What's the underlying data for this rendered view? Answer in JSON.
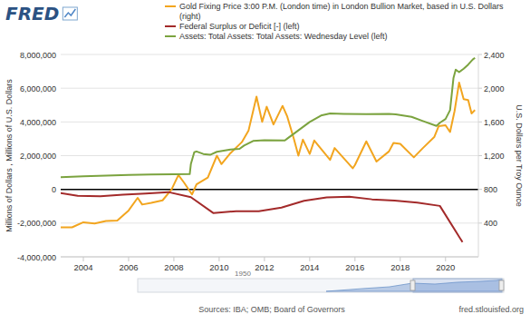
{
  "chart_data": {
    "type": "line",
    "logo": "FRED",
    "y_label": "Millions of Dollars , Millions of U.S. Dollars",
    "y2_label": "U.S. Dollars per Troy Ounce",
    "source": "Sources: IBA; OMB; Board of Governors",
    "url": "fred.stlouisfed.org",
    "range_slider_label": "1950",
    "legend": "top",
    "grid": true,
    "xlim": [
      2003,
      2021.45
    ],
    "xticks": [
      2004,
      2006,
      2008,
      2010,
      2012,
      2014,
      2016,
      2018,
      2020
    ],
    "ylim": [
      -4000000,
      8000000
    ],
    "yticks": [
      {
        "value": -4000000,
        "label": "-4,000,000"
      },
      {
        "value": -2000000,
        "label": "-2,000,000"
      },
      0,
      {
        "value": 2000000,
        "label": "2,000,000"
      },
      {
        "value": 4000000,
        "label": "4,000,000"
      },
      {
        "value": 6000000,
        "label": "6,000,000"
      },
      {
        "value": 8000000,
        "label": "8,000,000"
      }
    ],
    "y2lim": [
      0,
      2400
    ],
    "y2ticks": [
      400,
      800,
      {
        "value": 1200,
        "label": "1,200"
      },
      {
        "value": 1600,
        "label": "1,600"
      },
      {
        "value": 2000,
        "label": "2,000"
      },
      {
        "value": 2400,
        "label": "2,400"
      }
    ],
    "series": [
      {
        "name": "Gold Fixing Price 3:00 P.M. (London time) in London Bullion Market, based in U.S. Dollars (right)",
        "color": "#f2a51f",
        "axis": "y2",
        "x": [
          2003.0,
          2003.5,
          2004.0,
          2004.5,
          2005.0,
          2005.5,
          2006.0,
          2006.4,
          2006.6,
          2007.0,
          2007.5,
          2007.9,
          2008.2,
          2008.45,
          2008.8,
          2009.0,
          2009.5,
          2009.9,
          2010.1,
          2010.5,
          2011.0,
          2011.3,
          2011.65,
          2011.9,
          2012.1,
          2012.4,
          2012.8,
          2013.0,
          2013.3,
          2013.5,
          2013.7,
          2014.0,
          2014.2,
          2014.9,
          2015.1,
          2015.9,
          2016.0,
          2016.5,
          2016.95,
          2017.5,
          2017.7,
          2018.0,
          2018.6,
          2019.0,
          2019.5,
          2019.7,
          2020.0,
          2020.2,
          2020.4,
          2020.6,
          2020.8,
          2021.0,
          2021.15,
          2021.3
        ],
        "values": [
          350,
          350,
          410,
          395,
          425,
          430,
          550,
          700,
          620,
          640,
          670,
          800,
          970,
          880,
          740,
          860,
          940,
          1200,
          1100,
          1230,
          1360,
          1500,
          1900,
          1600,
          1780,
          1570,
          1790,
          1670,
          1400,
          1200,
          1390,
          1220,
          1380,
          1150,
          1290,
          1050,
          1090,
          1370,
          1130,
          1250,
          1350,
          1340,
          1180,
          1290,
          1420,
          1550,
          1560,
          1480,
          1730,
          2067,
          1870,
          1860,
          1700,
          1740
        ]
      },
      {
        "name": "Federal Surplus or Deficit [-] (left)",
        "color": "#a32a2a",
        "x": [
          2002.75,
          2003.75,
          2004.75,
          2005.75,
          2006.75,
          2007.75,
          2008.75,
          2009.75,
          2010.75,
          2011.75,
          2012.75,
          2013.75,
          2014.75,
          2015.75,
          2016.75,
          2017.75,
          2018.75,
          2019.75,
          2020.75
        ],
        "values": [
          -160000,
          -380000,
          -410000,
          -320000,
          -250000,
          -160000,
          -460000,
          -1410000,
          -1290000,
          -1300000,
          -1080000,
          -680000,
          -480000,
          -440000,
          -590000,
          -670000,
          -780000,
          -980000,
          -3130000
        ]
      },
      {
        "name": "Assets: Total Assets: Total Assets: Wednesday Level (left)",
        "color": "#7ba33f",
        "x": [
          2003.0,
          2004.0,
          2005.0,
          2006.0,
          2007.0,
          2008.0,
          2008.7,
          2008.75,
          2008.9,
          2009.0,
          2009.3,
          2009.6,
          2009.9,
          2010.5,
          2010.9,
          2011.1,
          2011.5,
          2012.0,
          2012.9,
          2013.0,
          2013.5,
          2014.0,
          2014.5,
          2014.9,
          2015.5,
          2016.5,
          2017.5,
          2017.8,
          2018.5,
          2019.0,
          2019.6,
          2019.75,
          2020.0,
          2020.2,
          2020.35,
          2020.45,
          2020.6,
          2020.8,
          2021.0,
          2021.2,
          2021.3
        ],
        "values": [
          720000,
          770000,
          820000,
          850000,
          880000,
          900000,
          905000,
          1500000,
          2200000,
          2250000,
          2100000,
          2050000,
          2230000,
          2360000,
          2400000,
          2600000,
          2870000,
          2920000,
          2900000,
          3000000,
          3500000,
          4000000,
          4380000,
          4500000,
          4480000,
          4460000,
          4470000,
          4450000,
          4300000,
          4050000,
          3760000,
          3950000,
          4170000,
          4700000,
          6600000,
          7100000,
          6950000,
          7150000,
          7400000,
          7700000,
          7800000
        ]
      }
    ]
  }
}
